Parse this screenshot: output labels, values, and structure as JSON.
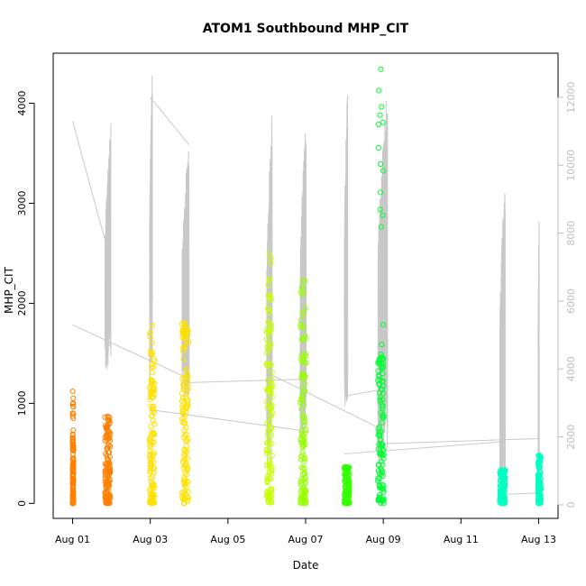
{
  "chart_data": {
    "type": "scatter",
    "title": "ATOM1 Southbound MHP_CIT",
    "xlabel": "Date",
    "ylabel": "MHP_CIT",
    "xlim": [
      "2023-07-31T12:00",
      "2023-08-13T12:00"
    ],
    "ylim": [
      -150,
      4500
    ],
    "y2lim": [
      -400,
      13300
    ],
    "x_ticks": [
      "Aug 01",
      "Aug 03",
      "Aug 05",
      "Aug 07",
      "Aug 09",
      "Aug 11",
      "Aug 13"
    ],
    "x_tick_dates": [
      "2023-08-01",
      "2023-08-03",
      "2023-08-05",
      "2023-08-07",
      "2023-08-09",
      "2023-08-11",
      "2023-08-13"
    ],
    "y_ticks": [
      0,
      1000,
      2000,
      3000,
      4000
    ],
    "y2_ticks": [
      0,
      2000,
      4000,
      6000,
      8000,
      10000,
      12000
    ],
    "grid": false,
    "legend": "none",
    "secondary_line_color": "#c8c8c8",
    "series": [
      {
        "color": "#ff8000",
        "bands": [
          {
            "start": "2023-08-01T00:00",
            "end": "2023-08-01T00:05",
            "low": 0,
            "dense_high": 650,
            "sparse_high": 1120
          },
          {
            "start": "2023-08-01T20:00",
            "end": "2023-08-01T23:20",
            "low": 0,
            "dense_high": 750,
            "sparse_high": 870
          }
        ]
      },
      {
        "color": "#ffe100",
        "bands": [
          {
            "start": "2023-08-02T23:40",
            "end": "2023-08-03T02:40",
            "low": 0,
            "dense_high": 1300,
            "sparse_high": 1780
          },
          {
            "start": "2023-08-03T19:40",
            "end": "2023-08-03T23:40",
            "low": 0,
            "dense_high": 1700,
            "sparse_high": 1800
          }
        ]
      },
      {
        "color": "#c8ff00",
        "bands": [
          {
            "start": "2023-08-06T00:00",
            "end": "2023-08-06T03:20",
            "low": 0,
            "dense_high": 1900,
            "sparse_high": 2490
          }
        ]
      },
      {
        "color": "#96ff00",
        "bands": [
          {
            "start": "2023-08-06T20:40",
            "end": "2023-08-07T00:20",
            "low": 0,
            "dense_high": 1700,
            "sparse_high": 2230
          }
        ]
      },
      {
        "color": "#32ff00",
        "bands": [
          {
            "start": "2023-08-08T00:00",
            "end": "2023-08-08T03:00",
            "low": 0,
            "dense_high": 360,
            "sparse_high": 360
          }
        ]
      },
      {
        "color": "#00ff32",
        "bands": [
          {
            "start": "2023-08-08T20:40",
            "end": "2023-08-09T00:20",
            "low": 0,
            "dense_high": 1500,
            "sparse_high": 4340
          }
        ]
      },
      {
        "color": "#00ffc0",
        "bands": [
          {
            "start": "2023-08-12T00:00",
            "end": "2023-08-12T03:20",
            "low": 0,
            "dense_high": 330,
            "sparse_high": 330
          },
          {
            "start": "2023-08-12T23:40",
            "end": "2023-08-13T01:20",
            "low": 0,
            "dense_high": 400,
            "sparse_high": 480
          }
        ]
      }
    ],
    "secondary_series": {
      "axis": "right",
      "color": "#c8c8c8",
      "spikes": [
        {
          "start": "2023-08-01T20:00",
          "end": "2023-08-01T23:40",
          "low": 3800,
          "high": 11300
        },
        {
          "start": "2023-08-02T23:40",
          "end": "2023-08-03T01:20",
          "low": 3600,
          "high": 13000
        },
        {
          "start": "2023-08-03T19:40",
          "end": "2023-08-04T00:00",
          "low": 3000,
          "high": 10900
        },
        {
          "start": "2023-08-06T00:00",
          "end": "2023-08-06T03:20",
          "low": 1000,
          "high": 11800
        },
        {
          "start": "2023-08-06T20:40",
          "end": "2023-08-07T00:20",
          "low": 1600,
          "high": 11700
        },
        {
          "start": "2023-08-08T00:00",
          "end": "2023-08-08T02:00",
          "low": 2900,
          "high": 12500
        },
        {
          "start": "2023-08-08T20:40",
          "end": "2023-08-09T02:40",
          "low": 1200,
          "high": 12500
        },
        {
          "start": "2023-08-12T00:00",
          "end": "2023-08-12T03:20",
          "low": 200,
          "high": 10100
        },
        {
          "start": "2023-08-12T23:40",
          "end": "2023-08-13T00:20",
          "low": 0,
          "high": 8850
        }
      ],
      "connectors": [
        [
          [
            "2023-08-01T00:00",
            11300
          ],
          [
            "2023-08-01T20:00",
            7800
          ]
        ],
        [
          [
            "2023-08-01T00:00",
            5300
          ],
          [
            "2023-08-03T20:00",
            3800
          ]
        ],
        [
          [
            "2023-08-03T00:00",
            12000
          ],
          [
            "2023-08-04T00:00",
            10600
          ]
        ],
        [
          [
            "2023-08-03T00:00",
            2800
          ],
          [
            "2023-08-06T20:00",
            2200
          ]
        ],
        [
          [
            "2023-08-04T00:00",
            3600
          ],
          [
            "2023-08-07T00:00",
            3700
          ]
        ],
        [
          [
            "2023-08-06T00:00",
            3900
          ],
          [
            "2023-08-09T00:00",
            2200
          ]
        ],
        [
          [
            "2023-08-08T00:00",
            1500
          ],
          [
            "2023-08-12T00:00",
            1850
          ]
        ],
        [
          [
            "2023-08-08T00:00",
            3200
          ],
          [
            "2023-08-09T00:00",
            3400
          ]
        ],
        [
          [
            "2023-08-09T00:00",
            1800
          ],
          [
            "2023-08-13T00:00",
            1950
          ]
        ],
        [
          [
            "2023-08-12T00:00",
            300
          ],
          [
            "2023-08-13T00:00",
            350
          ]
        ]
      ]
    }
  }
}
